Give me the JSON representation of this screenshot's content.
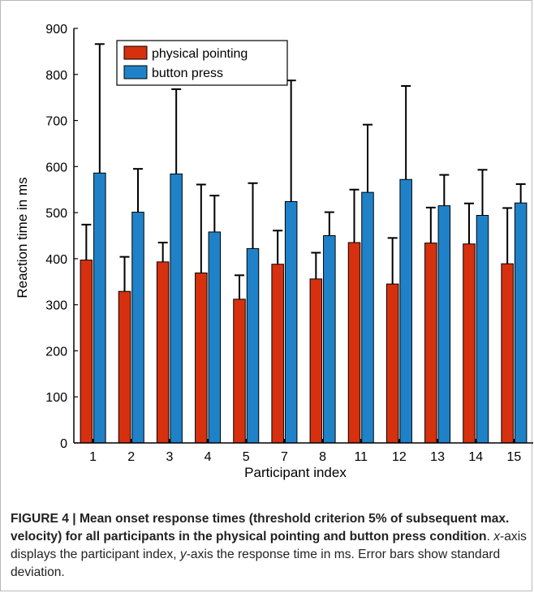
{
  "chart_data": {
    "type": "bar",
    "categories": [
      "1",
      "2",
      "3",
      "4",
      "5",
      "7",
      "8",
      "11",
      "12",
      "13",
      "14",
      "15"
    ],
    "series": [
      {
        "name": "physical pointing",
        "color": "#d7300f",
        "values": [
          397,
          329,
          393,
          369,
          312,
          388,
          356,
          435,
          345,
          434,
          432,
          389
        ],
        "error": [
          77,
          75,
          42,
          192,
          52,
          73,
          57,
          115,
          100,
          77,
          88,
          121
        ]
      },
      {
        "name": "button press",
        "color": "#1f82c8",
        "values": [
          586,
          501,
          584,
          458,
          422,
          524,
          450,
          544,
          572,
          515,
          494,
          521
        ],
        "error": [
          280,
          94,
          184,
          79,
          142,
          263,
          51,
          147,
          203,
          67,
          99,
          41
        ]
      }
    ],
    "xlabel": "Participant index",
    "ylabel": "Reaction time in ms",
    "ylim": [
      0,
      900
    ],
    "yticks": [
      0,
      100,
      200,
      300,
      400,
      500,
      600,
      700,
      800,
      900
    ],
    "legend_position": "top-left",
    "grid": false,
    "error_bars": "upper"
  },
  "caption": {
    "bold": "FIGURE 4 | Mean onset response times (threshold criterion 5% of subsequent max. velocity) for all participants in the physical pointing and button press condition",
    "x_axis_italic": "x",
    "x_axis_text": "-axis displays the participant index, ",
    "y_axis_italic": "y",
    "y_axis_text": "-axis the response time in ms. Error bars show standard deviation."
  }
}
